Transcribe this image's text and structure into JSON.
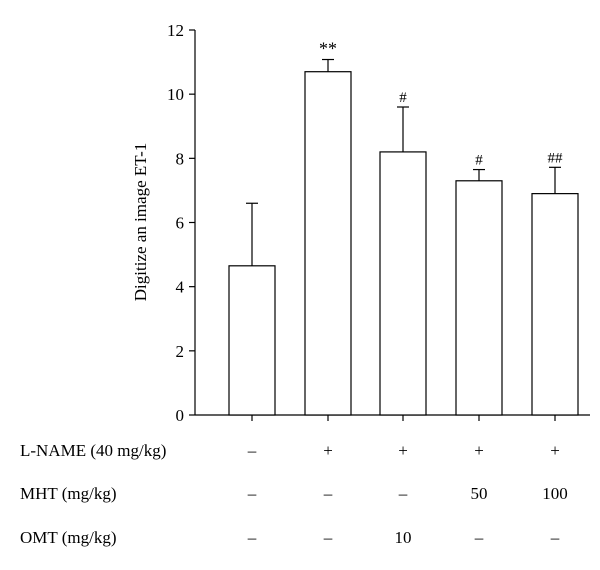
{
  "chart_data": {
    "type": "bar",
    "ylabel": "Digitize an image ET-1",
    "ylim": [
      0,
      12
    ],
    "yticks": [
      0,
      2,
      4,
      6,
      8,
      10,
      12
    ],
    "values": [
      4.65,
      10.7,
      8.2,
      7.3,
      6.9
    ],
    "errors": [
      1.95,
      0.38,
      1.4,
      0.35,
      0.82
    ],
    "significance": [
      "",
      "**",
      "#",
      "#",
      "##"
    ],
    "bar_fill": "#ffffff",
    "bar_stroke": "#000000",
    "treatments": [
      {
        "label": "L-NAME (40 mg/kg)",
        "values": [
          "–",
          "+",
          "+",
          "+",
          "+"
        ]
      },
      {
        "label": "MHT (mg/kg)",
        "values": [
          "–",
          "–",
          "–",
          "50",
          "100"
        ]
      },
      {
        "label": "OMT (mg/kg)",
        "values": [
          "–",
          "–",
          "10",
          "–",
          "–"
        ]
      }
    ]
  }
}
